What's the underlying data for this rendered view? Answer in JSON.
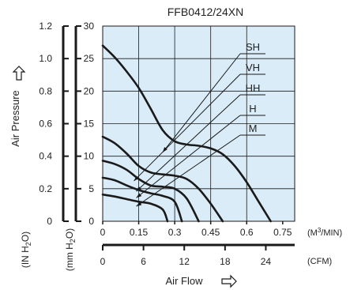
{
  "colors": {
    "background": "#ffffff",
    "plot_fill": "#d9ecf8",
    "grid": "#1a1a1a",
    "curve": "#1a1a1a",
    "axis": "#1a1a1a",
    "text": "#222222"
  },
  "icons": {
    "y_arrow": "outline-arrow-up-icon",
    "x_arrow": "outline-arrow-right-icon"
  },
  "chart_data": {
    "type": "line",
    "title": "FFB0412/24XN",
    "xlabel": "Air Flow",
    "ylabel": "Air Pressure",
    "grid": true,
    "legend": "leader-line labels, top-right",
    "x_axes": [
      {
        "unit": "(M³/MIN)",
        "unit_main": "(M",
        "unit_sup": "3",
        "unit_tail": "/MIN)",
        "ticks": [
          "0",
          "0.15",
          "0.3",
          "0.45",
          "0.6",
          "0.75"
        ],
        "range": [
          0,
          0.8
        ]
      },
      {
        "unit": "(CFM)",
        "ticks": [
          "0",
          "6",
          "12",
          "18",
          "24"
        ],
        "range": [
          0,
          28.25
        ]
      }
    ],
    "y_axes": [
      {
        "unit": "(IN H₂O)",
        "unit_parts": [
          "(IN H",
          "2",
          "O)"
        ],
        "ticks": [
          "0",
          "0.2",
          "0.4",
          "0.6",
          "0.8",
          "1.0",
          "1.2"
        ],
        "range": [
          0,
          1.18
        ]
      },
      {
        "unit": "(mm H₂O)",
        "unit_parts": [
          "(mm H",
          "2",
          "O)"
        ],
        "ticks": [
          "0",
          "5",
          "10",
          "15",
          "20",
          "25",
          "30"
        ],
        "range": [
          0,
          30
        ]
      }
    ],
    "series": [
      {
        "name": "SH",
        "x": [
          0,
          0.05,
          0.1,
          0.15,
          0.2,
          0.25,
          0.3,
          0.35,
          0.4,
          0.45,
          0.5,
          0.55,
          0.6,
          0.65,
          0.7
        ],
        "y": [
          27,
          25.2,
          23,
          20.5,
          17.3,
          14,
          12.3,
          11.8,
          11.6,
          11.2,
          10.3,
          8.5,
          6,
          3,
          0
        ]
      },
      {
        "name": "VH",
        "x": [
          0,
          0.05,
          0.1,
          0.15,
          0.2,
          0.25,
          0.3,
          0.35,
          0.4,
          0.45,
          0.5
        ],
        "y": [
          13,
          12,
          10.4,
          8.5,
          7.5,
          7.2,
          7,
          6.5,
          5,
          2.7,
          0
        ]
      },
      {
        "name": "HH",
        "x": [
          0,
          0.05,
          0.1,
          0.15,
          0.2,
          0.25,
          0.3,
          0.35,
          0.4
        ],
        "y": [
          9.3,
          8.8,
          7.9,
          6.5,
          5.5,
          5.3,
          5,
          3.5,
          0
        ]
      },
      {
        "name": "H",
        "x": [
          0,
          0.05,
          0.1,
          0.15,
          0.2,
          0.25,
          0.3,
          0.33
        ],
        "y": [
          6.7,
          6.3,
          5.5,
          4.8,
          4.3,
          3.9,
          3,
          0
        ]
      },
      {
        "name": "M",
        "x": [
          0,
          0.05,
          0.1,
          0.15,
          0.2,
          0.25,
          0.27
        ],
        "y": [
          4.1,
          3.8,
          3.4,
          3,
          2.7,
          1.8,
          0
        ]
      }
    ]
  }
}
